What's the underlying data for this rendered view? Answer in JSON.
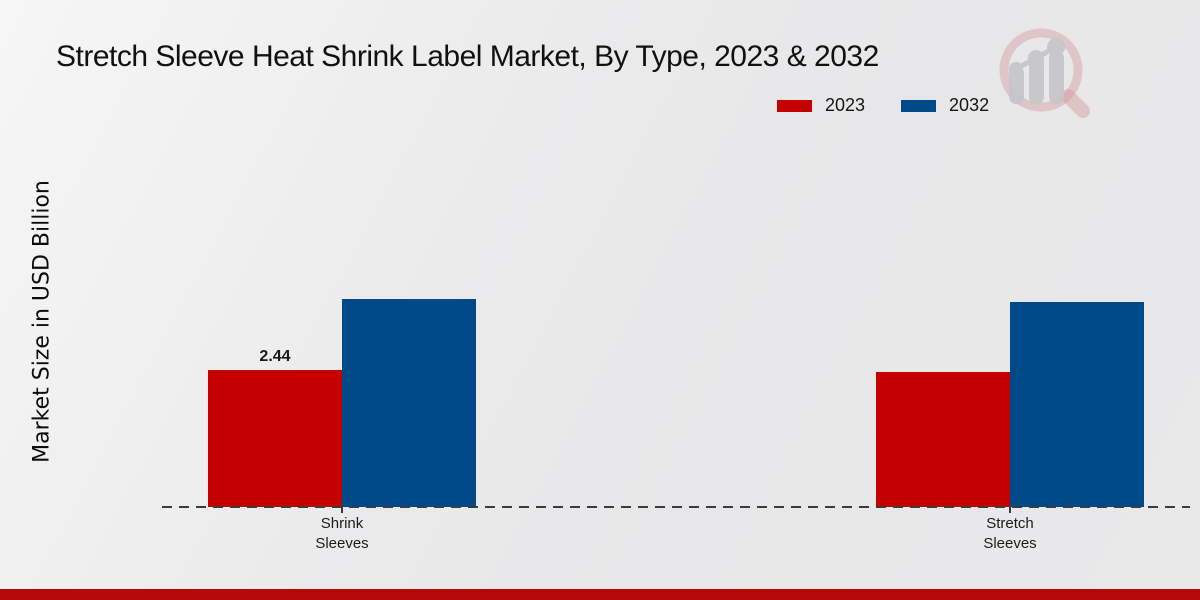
{
  "title": "Stretch Sleeve Heat Shrink Label Market, By Type, 2023 & 2032",
  "y_axis_label": "Market Size in USD Billion",
  "legend": [
    {
      "label": "2023",
      "color": "#c40000"
    },
    {
      "label": "2032",
      "color": "#004a8a"
    }
  ],
  "brand_logo_icon": "growth-chart-magnifier-logo",
  "footer": {
    "strip_color": "#b30909"
  },
  "chart_data": {
    "type": "bar",
    "title": "Stretch Sleeve Heat Shrink Label Market, By Type, 2023 & 2032",
    "xlabel": "",
    "ylabel": "Market Size in USD Billion",
    "categories": [
      "Shrink Sleeves",
      "Stretch Sleeves"
    ],
    "series": [
      {
        "name": "2023",
        "color": "#c40000",
        "values": [
          2.44,
          2.4
        ],
        "data_labels": [
          "2.44",
          ""
        ]
      },
      {
        "name": "2032",
        "color": "#004a8a",
        "values": [
          3.7,
          3.65
        ],
        "data_labels": [
          "",
          ""
        ]
      }
    ],
    "ylim": [
      0,
      4.5
    ],
    "y_ticks_visible": false,
    "grid": false,
    "baseline_style": "dashed",
    "legend_position": "top-right"
  }
}
